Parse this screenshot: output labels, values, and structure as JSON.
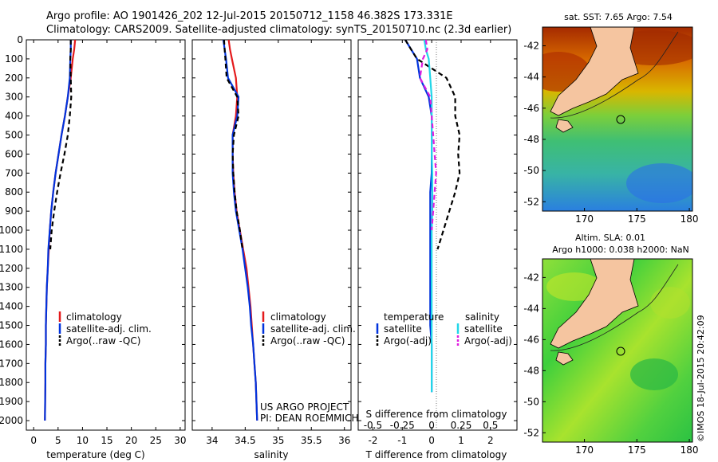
{
  "header": {
    "line1": "Argo profile: AO 1901426_202 12-Jul-2015 20150712_1158 46.382S 173.331E",
    "line2": "Climatology: CARS2009. Satellite-adjusted climatology: synTS_20150710.nc (2.3d earlier)"
  },
  "stamp": "©IMOS 18-Jul-2015 20:42:09",
  "colors": {
    "climatology": "#e41a1c",
    "satellite": "#0033dd",
    "argo": "#000000",
    "sat_salinity": "#22d6e8",
    "argo_salinity": "#e01ee0",
    "land": "#f5c5a0"
  },
  "depth_axis": {
    "ylim": [
      0,
      2050
    ],
    "ticks": [
      0,
      100,
      200,
      300,
      400,
      500,
      600,
      700,
      800,
      900,
      1000,
      1100,
      1200,
      1300,
      1400,
      1500,
      1600,
      1700,
      1800,
      1900,
      2000
    ]
  },
  "texts": {
    "temp_xlabel": "temperature (deg C)",
    "sal_xlabel": "salinity",
    "diff_xlabel": "T difference from climatology",
    "diff_top_label": "S difference from climatology",
    "project1": "US ARGO PROJECT",
    "project2": "PI: DEAN ROEMMICH",
    "sst_title": "sat. SST: 7.65 Argo: 7.54",
    "sla_title1": "Altim. SLA: 0.01",
    "sla_title2": "Argo h1000: 0.038 h2000: NaN"
  },
  "legend_profiles": [
    "climatology",
    "satellite-adj. clim.",
    "Argo(..raw -QC)"
  ],
  "legend_diff": {
    "temp_head": "temperature",
    "sal_head": "salinity",
    "sat": "satellite",
    "argo": "Argo(-adj)"
  },
  "chart_data": [
    {
      "type": "line",
      "name": "temperature-profile",
      "xlabel": "temperature (deg C)",
      "ylabel": "",
      "xlim": [
        -1.5,
        31
      ],
      "xticks": [
        0,
        5,
        10,
        15,
        20,
        25,
        30
      ],
      "ylim": [
        0,
        2050
      ],
      "y_reversed": true,
      "series": [
        {
          "name": "climatology",
          "style": "solid",
          "color": "#e41a1c",
          "x": [
            8.5,
            8.3,
            8.0,
            7.6,
            7.0,
            6.4,
            5.7,
            5.1,
            4.5,
            4.0,
            3.6,
            3.3,
            3.1,
            2.9,
            2.7,
            2.6,
            2.5,
            2.5,
            2.4,
            2.4,
            2.3
          ],
          "y": [
            0,
            50,
            100,
            200,
            300,
            400,
            500,
            600,
            700,
            800,
            900,
            1000,
            1100,
            1200,
            1300,
            1400,
            1500,
            1600,
            1700,
            1800,
            2000
          ]
        },
        {
          "name": "satellite-adj. clim.",
          "style": "solid",
          "color": "#0033dd",
          "x": [
            7.6,
            7.6,
            7.5,
            7.4,
            7.0,
            6.4,
            5.7,
            5.1,
            4.5,
            4.0,
            3.6,
            3.3,
            3.0,
            2.9,
            2.7,
            2.6,
            2.5,
            2.5,
            2.4,
            2.4,
            2.3
          ],
          "y": [
            0,
            50,
            100,
            200,
            300,
            400,
            500,
            600,
            700,
            800,
            900,
            1000,
            1100,
            1200,
            1300,
            1400,
            1500,
            1600,
            1700,
            1800,
            2000
          ]
        },
        {
          "name": "Argo(..raw -QC)",
          "style": "dashed",
          "color": "#000000",
          "x": [
            7.6,
            7.6,
            7.5,
            7.6,
            7.7,
            7.4,
            7.0,
            6.3,
            5.5,
            4.8,
            4.2,
            3.7,
            3.4
          ],
          "y": [
            0,
            50,
            100,
            200,
            300,
            400,
            500,
            600,
            700,
            800,
            900,
            1000,
            1100
          ]
        }
      ]
    },
    {
      "type": "line",
      "name": "salinity-profile",
      "xlabel": "salinity",
      "ylabel": "",
      "xlim": [
        33.7,
        36.1
      ],
      "xticks": [
        34,
        34.5,
        35,
        35.5,
        36
      ],
      "xticklabels": [
        "34",
        "34.5",
        "35",
        "35.5",
        "36"
      ],
      "ylim": [
        0,
        2050
      ],
      "y_reversed": true,
      "series": [
        {
          "name": "climatology",
          "style": "solid",
          "color": "#e41a1c",
          "x": [
            34.25,
            34.27,
            34.3,
            34.36,
            34.38,
            34.36,
            34.31,
            34.31,
            34.32,
            34.34,
            34.37,
            34.42,
            34.47,
            34.52,
            34.55,
            34.58,
            34.6,
            34.62,
            34.64,
            34.66,
            34.68
          ],
          "y": [
            0,
            50,
            100,
            200,
            300,
            400,
            500,
            600,
            700,
            800,
            900,
            1000,
            1100,
            1200,
            1300,
            1400,
            1500,
            1600,
            1700,
            1800,
            2000
          ]
        },
        {
          "name": "satellite-adj. clim.",
          "style": "solid",
          "color": "#0033dd",
          "x": [
            34.17,
            34.19,
            34.21,
            34.24,
            34.4,
            34.38,
            34.31,
            34.31,
            34.31,
            34.33,
            34.36,
            34.41,
            34.46,
            34.5,
            34.54,
            34.57,
            34.59,
            34.62,
            34.64,
            34.66,
            34.68
          ],
          "y": [
            0,
            50,
            100,
            200,
            300,
            400,
            500,
            600,
            700,
            800,
            900,
            1000,
            1100,
            1200,
            1300,
            1400,
            1500,
            1600,
            1700,
            1800,
            2000
          ]
        },
        {
          "name": "Argo(..raw -QC)",
          "style": "dashed",
          "color": "#000000",
          "x": [
            34.18,
            34.19,
            34.2,
            34.22,
            34.38,
            34.4,
            34.33,
            34.31,
            34.32,
            34.34,
            34.37,
            34.42,
            34.46
          ],
          "y": [
            0,
            50,
            100,
            200,
            300,
            400,
            500,
            600,
            700,
            800,
            900,
            1000,
            1100
          ]
        }
      ]
    },
    {
      "type": "line",
      "name": "difference-profile",
      "xlabel": "T difference from climatology",
      "top_label": "S difference from climatology",
      "ylabel": "",
      "xlim": [
        -2.5,
        2.9
      ],
      "xticks": [
        -2,
        -1,
        0,
        1,
        2
      ],
      "top_xticks": [
        "-0.5",
        "-0.25",
        "0",
        "0.25",
        "0.5"
      ],
      "ylim": [
        0,
        2050
      ],
      "y_reversed": true,
      "series": [
        {
          "name": "temperature satellite",
          "style": "solid",
          "color": "#0033dd",
          "x": [
            -0.9,
            -0.7,
            -0.5,
            -0.4,
            -0.1,
            0.0,
            0.0,
            0.0,
            0.0,
            -0.05,
            -0.05,
            -0.05,
            -0.05,
            -0.05,
            -0.05,
            -0.05,
            0.0,
            0.0,
            0.0,
            0.0
          ],
          "y": [
            0,
            50,
            100,
            200,
            300,
            400,
            500,
            600,
            700,
            800,
            900,
            1000,
            1200,
            1300,
            1400,
            1500,
            1600,
            1700,
            1800,
            1850
          ]
        },
        {
          "name": "temperature Argo(-adj)",
          "style": "dashed",
          "color": "#000000",
          "x": [
            -0.9,
            -0.7,
            -0.5,
            0.5,
            0.8,
            0.8,
            0.95,
            0.9,
            0.95,
            0.8,
            0.6,
            0.4,
            0.2
          ],
          "y": [
            0,
            50,
            100,
            200,
            300,
            400,
            500,
            600,
            700,
            800,
            900,
            1000,
            1100
          ]
        },
        {
          "name": "salinity satellite",
          "style": "solid",
          "color": "#22d6e8",
          "x": [
            -0.25,
            -0.2,
            -0.1,
            -0.05,
            0.0,
            0.0,
            0.0,
            0.0,
            0.02,
            0.02,
            0.02,
            0.0,
            0.0,
            0.0,
            0.0,
            0.0,
            0.0,
            0.0,
            0.0,
            0.0
          ],
          "y": [
            0,
            50,
            100,
            200,
            300,
            400,
            500,
            600,
            700,
            800,
            900,
            1000,
            1200,
            1300,
            1400,
            1500,
            1600,
            1700,
            1800,
            1850
          ]
        },
        {
          "name": "salinity Argo(-adj)",
          "style": "dashed",
          "color": "#e01ee0",
          "x": [
            -0.2,
            -0.15,
            -0.3,
            -0.4,
            -0.05,
            0.0,
            0.05,
            0.1,
            0.15,
            0.1,
            0.05,
            0.0
          ],
          "y": [
            0,
            50,
            100,
            200,
            300,
            400,
            500,
            600,
            700,
            800,
            900,
            1000
          ]
        }
      ]
    },
    {
      "type": "heatmap",
      "name": "sst-map",
      "title": "sat. SST: 7.65 Argo: 7.54",
      "xticks": [
        170,
        175,
        180
      ],
      "yticks": [
        -42,
        -44,
        -46,
        -48,
        -50,
        -52
      ],
      "xlim": [
        166,
        180.3
      ],
      "ylim": [
        -52.6,
        -40.8
      ],
      "float_position": [
        173.331,
        -46.382
      ]
    },
    {
      "type": "heatmap",
      "name": "sla-map",
      "title": "Altim. SLA: 0.01",
      "subtitle": "Argo h1000: 0.038 h2000: NaN",
      "xticks": [
        170,
        175,
        180
      ],
      "yticks": [
        -42,
        -44,
        -46,
        -48,
        -50,
        -52
      ],
      "xlim": [
        166,
        180.3
      ],
      "ylim": [
        -52.6,
        -40.8
      ],
      "float_position": [
        173.331,
        -46.382
      ]
    }
  ]
}
